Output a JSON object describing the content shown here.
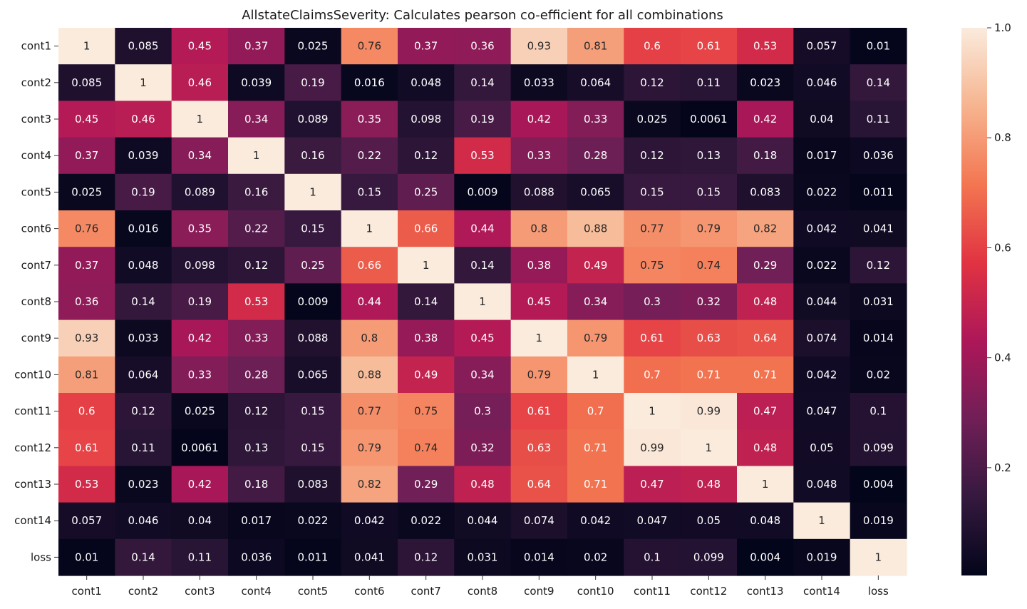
{
  "chart_data": {
    "type": "heatmap",
    "title": "AllstateClaimsSeverity: Calculates pearson co-efficient for all combinations",
    "xlabel": "",
    "ylabel": "",
    "columns": [
      "cont1",
      "cont2",
      "cont3",
      "cont4",
      "cont5",
      "cont6",
      "cont7",
      "cont8",
      "cont9",
      "cont10",
      "cont11",
      "cont12",
      "cont13",
      "cont14",
      "loss"
    ],
    "rows": [
      "cont1",
      "cont2",
      "cont3",
      "cont4",
      "cont5",
      "cont6",
      "cont7",
      "cont8",
      "cont9",
      "cont10",
      "cont11",
      "cont12",
      "cont13",
      "cont14",
      "loss"
    ],
    "values": [
      [
        "1",
        "0.085",
        "0.45",
        "0.37",
        "0.025",
        "0.76",
        "0.37",
        "0.36",
        "0.93",
        "0.81",
        "0.6",
        "0.61",
        "0.53",
        "0.057",
        "0.01"
      ],
      [
        "0.085",
        "1",
        "0.46",
        "0.039",
        "0.19",
        "0.016",
        "0.048",
        "0.14",
        "0.033",
        "0.064",
        "0.12",
        "0.11",
        "0.023",
        "0.046",
        "0.14"
      ],
      [
        "0.45",
        "0.46",
        "1",
        "0.34",
        "0.089",
        "0.35",
        "0.098",
        "0.19",
        "0.42",
        "0.33",
        "0.025",
        "0.0061",
        "0.42",
        "0.04",
        "0.11"
      ],
      [
        "0.37",
        "0.039",
        "0.34",
        "1",
        "0.16",
        "0.22",
        "0.12",
        "0.53",
        "0.33",
        "0.28",
        "0.12",
        "0.13",
        "0.18",
        "0.017",
        "0.036"
      ],
      [
        "0.025",
        "0.19",
        "0.089",
        "0.16",
        "1",
        "0.15",
        "0.25",
        "0.009",
        "0.088",
        "0.065",
        "0.15",
        "0.15",
        "0.083",
        "0.022",
        "0.011"
      ],
      [
        "0.76",
        "0.016",
        "0.35",
        "0.22",
        "0.15",
        "1",
        "0.66",
        "0.44",
        "0.8",
        "0.88",
        "0.77",
        "0.79",
        "0.82",
        "0.042",
        "0.041"
      ],
      [
        "0.37",
        "0.048",
        "0.098",
        "0.12",
        "0.25",
        "0.66",
        "1",
        "0.14",
        "0.38",
        "0.49",
        "0.75",
        "0.74",
        "0.29",
        "0.022",
        "0.12"
      ],
      [
        "0.36",
        "0.14",
        "0.19",
        "0.53",
        "0.009",
        "0.44",
        "0.14",
        "1",
        "0.45",
        "0.34",
        "0.3",
        "0.32",
        "0.48",
        "0.044",
        "0.031"
      ],
      [
        "0.93",
        "0.033",
        "0.42",
        "0.33",
        "0.088",
        "0.8",
        "0.38",
        "0.45",
        "1",
        "0.79",
        "0.61",
        "0.63",
        "0.64",
        "0.074",
        "0.014"
      ],
      [
        "0.81",
        "0.064",
        "0.33",
        "0.28",
        "0.065",
        "0.88",
        "0.49",
        "0.34",
        "0.79",
        "1",
        "0.7",
        "0.71",
        "0.71",
        "0.042",
        "0.02"
      ],
      [
        "0.6",
        "0.12",
        "0.025",
        "0.12",
        "0.15",
        "0.77",
        "0.75",
        "0.3",
        "0.61",
        "0.7",
        "1",
        "0.99",
        "0.47",
        "0.047",
        "0.1"
      ],
      [
        "0.61",
        "0.11",
        "0.0061",
        "0.13",
        "0.15",
        "0.79",
        "0.74",
        "0.32",
        "0.63",
        "0.71",
        "0.99",
        "1",
        "0.48",
        "0.05",
        "0.099"
      ],
      [
        "0.53",
        "0.023",
        "0.42",
        "0.18",
        "0.083",
        "0.82",
        "0.29",
        "0.48",
        "0.64",
        "0.71",
        "0.47",
        "0.48",
        "1",
        "0.048",
        "0.004"
      ],
      [
        "0.057",
        "0.046",
        "0.04",
        "0.017",
        "0.022",
        "0.042",
        "0.022",
        "0.044",
        "0.074",
        "0.042",
        "0.047",
        "0.05",
        "0.048",
        "1",
        "0.019"
      ],
      [
        "0.01",
        "0.14",
        "0.11",
        "0.036",
        "0.011",
        "0.041",
        "0.12",
        "0.031",
        "0.014",
        "0.02",
        "0.1",
        "0.099",
        "0.004",
        "0.019",
        "1"
      ]
    ],
    "colorbar": {
      "vmin": 0.004,
      "vmax": 1.0,
      "ticks": [
        "0.2",
        "0.4",
        "0.6",
        "0.8",
        "1.0"
      ],
      "colormap": "rocket",
      "colormap_stops": [
        "#03051a",
        "#35193e",
        "#701f57",
        "#ad1759",
        "#e13342",
        "#f37651",
        "#f6b48f",
        "#faebdd"
      ]
    },
    "annotation_dark_text_color": "#262626",
    "annotation_light_text_color": "#ffffff"
  }
}
